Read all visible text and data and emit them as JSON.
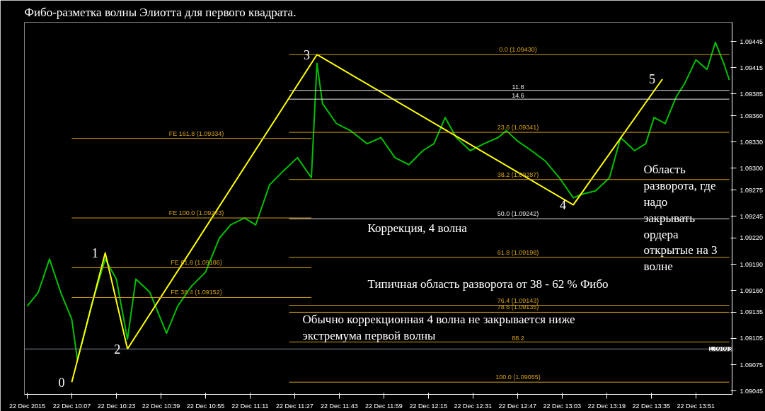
{
  "chart_data": {
    "type": "line",
    "title": "Фибо-разметка волны Элиотта для первого квадрата.",
    "xlim": [
      "2015-12-22T09:50",
      "2015-12-22T14:04"
    ],
    "ylim": [
      1.09041,
      1.09467
    ],
    "grid": false,
    "line_style": "solid",
    "xticks": [
      {
        "value": "2015-12-22T09:51",
        "label": "22 Dec 2015"
      },
      {
        "value": "2015-12-22T10:07",
        "label": "22 Dec 10:07"
      },
      {
        "value": "2015-12-22T10:23",
        "label": "22 Dec 10:23"
      },
      {
        "value": "2015-12-22T10:39",
        "label": "22 Dec 10:39"
      },
      {
        "value": "2015-12-22T10:55",
        "label": "22 Dec 10:55"
      },
      {
        "value": "2015-12-22T11:11",
        "label": "22 Dec 11:11"
      },
      {
        "value": "2015-12-22T11:27",
        "label": "22 Dec 11:27"
      },
      {
        "value": "2015-12-22T11:43",
        "label": "22 Dec 11:43"
      },
      {
        "value": "2015-12-22T11:59",
        "label": "22 Dec 11:59"
      },
      {
        "value": "2015-12-22T12:15",
        "label": "22 Dec 12:15"
      },
      {
        "value": "2015-12-22T12:31",
        "label": "22 Dec 12:31"
      },
      {
        "value": "2015-12-22T12:47",
        "label": "22 Dec 12:47"
      },
      {
        "value": "2015-12-22T13:03",
        "label": "22 Dec 13:03"
      },
      {
        "value": "2015-12-22T13:19",
        "label": "22 Dec 13:19"
      },
      {
        "value": "2015-12-22T13:35",
        "label": "22 Dec 13:35"
      },
      {
        "value": "2015-12-22T13:51",
        "label": "22 Dec 13:51"
      }
    ],
    "yticks": [
      {
        "value": 1.09045,
        "label": "1.09045"
      },
      {
        "value": 1.09075,
        "label": "1.09075"
      },
      {
        "value": 1.09105,
        "label": "1.09105"
      },
      {
        "value": 1.09135,
        "label": "1.09135"
      },
      {
        "value": 1.0916,
        "label": "1.09160"
      },
      {
        "value": 1.0919,
        "label": "1.09190"
      },
      {
        "value": 1.0922,
        "label": "1.09220"
      },
      {
        "value": 1.09245,
        "label": "1.09245"
      },
      {
        "value": 1.09275,
        "label": "1.09275"
      },
      {
        "value": 1.093,
        "label": "1.09300"
      },
      {
        "value": 1.0933,
        "label": "1.09330"
      },
      {
        "value": 1.0936,
        "label": "1.09360"
      },
      {
        "value": 1.09385,
        "label": "1.09385"
      },
      {
        "value": 1.09415,
        "label": "1.09415"
      },
      {
        "value": 1.09445,
        "label": "1.09445"
      }
    ],
    "ref_lines": [
      {
        "axis": "y",
        "value": 1.09093,
        "label": "1.09093",
        "color": "#8090a0"
      }
    ],
    "series": [
      {
        "color": "#00c000",
        "x": [
          "2015-12-22T09:51",
          "2015-12-22T09:55",
          "2015-12-22T09:59",
          "2015-12-22T10:03",
          "2015-12-22T10:07",
          "2015-12-22T10:09",
          "2015-12-22T10:11",
          "2015-12-22T10:14",
          "2015-12-22T10:19",
          "2015-12-22T10:23",
          "2015-12-22T10:27",
          "2015-12-22T10:30",
          "2015-12-22T10:35",
          "2015-12-22T10:41",
          "2015-12-22T10:45",
          "2015-12-22T10:50",
          "2015-12-22T10:55",
          "2015-12-22T11:00",
          "2015-12-22T11:04",
          "2015-12-22T11:09",
          "2015-12-22T11:13",
          "2015-12-22T11:18",
          "2015-12-22T11:23",
          "2015-12-22T11:28",
          "2015-12-22T11:33",
          "2015-12-22T11:35",
          "2015-12-22T11:37",
          "2015-12-22T11:42",
          "2015-12-22T11:47",
          "2015-12-22T11:53",
          "2015-12-22T11:58",
          "2015-12-22T12:03",
          "2015-12-22T12:08",
          "2015-12-22T12:13",
          "2015-12-22T12:17",
          "2015-12-22T12:21",
          "2015-12-22T12:25",
          "2015-12-22T12:30",
          "2015-12-22T12:35",
          "2015-12-22T12:40",
          "2015-12-22T12:43",
          "2015-12-22T12:47",
          "2015-12-22T12:52",
          "2015-12-22T12:57",
          "2015-12-22T13:02",
          "2015-12-22T13:07",
          "2015-12-22T13:10",
          "2015-12-22T13:15",
          "2015-12-22T13:20",
          "2015-12-22T13:24",
          "2015-12-22T13:29",
          "2015-12-22T13:33",
          "2015-12-22T13:36",
          "2015-12-22T13:40",
          "2015-12-22T13:44",
          "2015-12-22T13:47",
          "2015-12-22T13:51",
          "2015-12-22T13:55",
          "2015-12-22T13:58",
          "2015-12-22T14:01",
          "2015-12-22T14:03"
        ],
        "values": [
          1.09142,
          1.09158,
          1.09196,
          1.09158,
          1.09127,
          1.09081,
          1.09104,
          1.09142,
          1.09196,
          1.09173,
          1.09104,
          1.09173,
          1.09158,
          1.09111,
          1.09142,
          1.09165,
          1.09181,
          1.0922,
          1.09235,
          1.09243,
          1.09235,
          1.09281,
          1.09297,
          1.09312,
          1.09289,
          1.0942,
          1.09374,
          1.09351,
          1.09343,
          1.09328,
          1.09335,
          1.09312,
          1.09304,
          1.0932,
          1.09328,
          1.09358,
          1.09335,
          1.0932,
          1.09328,
          1.09335,
          1.09343,
          1.09331,
          1.0932,
          1.09308,
          1.09289,
          1.09266,
          1.0927,
          1.09274,
          1.09289,
          1.09335,
          1.0932,
          1.09328,
          1.09358,
          1.09351,
          1.09382,
          1.09397,
          1.09424,
          1.09413,
          1.09444,
          1.0942,
          1.09401
        ]
      },
      {
        "color": "#ffff00",
        "x": [
          "2015-12-22T10:07",
          "2015-12-22T10:19",
          "2015-12-22T10:27",
          "2015-12-22T11:35",
          "2015-12-22T13:07",
          "2015-12-22T13:39"
        ],
        "values": [
          1.09055,
          1.09203,
          1.09093,
          1.0943,
          1.09258,
          1.09402
        ]
      },
      {
        "name": "0.0 (1.09430)",
        "color": "#d4a017",
        "x": [
          "2015-12-22T11:25",
          "2015-12-22T14:03"
        ],
        "values": [
          1.0943,
          1.0943
        ]
      },
      {
        "name": "11.8",
        "color": "#e8e8e8",
        "x": [
          "2015-12-22T11:25",
          "2015-12-22T14:03"
        ],
        "values": [
          1.09389,
          1.09389
        ]
      },
      {
        "name": "14.6",
        "color": "#e8e8e8",
        "x": [
          "2015-12-22T11:25",
          "2015-12-22T14:03"
        ],
        "values": [
          1.09379,
          1.09379
        ]
      },
      {
        "name": "23.6 (1.09341)",
        "color": "#d4a017",
        "x": [
          "2015-12-22T11:25",
          "2015-12-22T14:03"
        ],
        "values": [
          1.09341,
          1.09341
        ]
      },
      {
        "name": "38.2 (1.09287)",
        "color": "#d4a017",
        "x": [
          "2015-12-22T11:25",
          "2015-12-22T14:03"
        ],
        "values": [
          1.09287,
          1.09287
        ]
      },
      {
        "name": "50.0 (1.09242)",
        "color": "#e8e8e8",
        "x": [
          "2015-12-22T11:25",
          "2015-12-22T14:03"
        ],
        "values": [
          1.09242,
          1.09242
        ]
      },
      {
        "name": "61.8 (1.09198)",
        "color": "#d4a017",
        "x": [
          "2015-12-22T11:25",
          "2015-12-22T14:03"
        ],
        "values": [
          1.09198,
          1.09198
        ]
      },
      {
        "name": "76.4 (1.09143)",
        "color": "#d4a017",
        "x": [
          "2015-12-22T11:25",
          "2015-12-22T14:03"
        ],
        "values": [
          1.09143,
          1.09143
        ]
      },
      {
        "name": "78.6 (1.09135)",
        "color": "#d4a017",
        "x": [
          "2015-12-22T11:25",
          "2015-12-22T14:03"
        ],
        "values": [
          1.09135,
          1.09135
        ]
      },
      {
        "name": "88.2",
        "color": "#d4a017",
        "x": [
          "2015-12-22T11:25",
          "2015-12-22T14:03"
        ],
        "values": [
          1.09101,
          1.09101
        ]
      },
      {
        "name": "100.0 (1.09055)",
        "color": "#d4a017",
        "x": [
          "2015-12-22T11:25",
          "2015-12-22T14:03"
        ],
        "values": [
          1.09055,
          1.09055
        ]
      },
      {
        "name": "FE 161.8 (1.09334)",
        "color": "#d4a017",
        "x": [
          "2015-12-22T10:07",
          "2015-12-22T11:33"
        ],
        "values": [
          1.09334,
          1.09334
        ]
      },
      {
        "name": "FE 100.0 (1.09243)",
        "color": "#d4a017",
        "x": [
          "2015-12-22T10:07",
          "2015-12-22T11:33"
        ],
        "values": [
          1.09243,
          1.09243
        ]
      },
      {
        "name": "FE 61.8 (1.09186)",
        "color": "#d4a017",
        "x": [
          "2015-12-22T10:07",
          "2015-12-22T11:33"
        ],
        "values": [
          1.09186,
          1.09186
        ]
      },
      {
        "name": "FE 38.4 (1.09152)",
        "color": "#d4a017",
        "x": [
          "2015-12-22T10:07",
          "2015-12-22T11:33"
        ],
        "values": [
          1.09152,
          1.09152
        ]
      }
    ],
    "annotations": [
      {
        "text": "0",
        "x": "2015-12-22T10:07",
        "y": 1.09055
      },
      {
        "text": "1",
        "x": "2015-12-22T10:19",
        "y": 1.09203
      },
      {
        "text": "2",
        "x": "2015-12-22T10:27",
        "y": 1.09093
      },
      {
        "text": "3",
        "x": "2015-12-22T11:35",
        "y": 1.0943
      },
      {
        "text": "4",
        "x": "2015-12-22T13:07",
        "y": 1.09258
      },
      {
        "text": "5",
        "x": "2015-12-22T13:39",
        "y": 1.09402
      },
      "Коррекция, 4 волна",
      "Типичная область разворота от 38 - 62 % Фибо",
      "Обычно коррекционная 4 волна не закрывается ниже\nэкстремума первой волны",
      "Область\nразворота, где\nнадо\nзакрывать\nордера\nоткрытые на 3\nволне"
    ]
  }
}
